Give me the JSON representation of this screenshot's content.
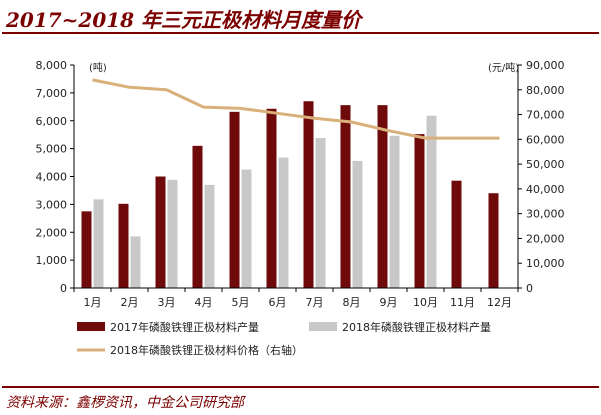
{
  "title": "2017~2018 年三元正极材料月度量价",
  "source": "资料来源：鑫椤资讯，中金公司研究部",
  "colors": {
    "series2017": "#6e0a0a",
    "series2018": "#c8c8c8",
    "price": "#d9b07a",
    "accent": "#7b0000"
  },
  "chart_data": {
    "type": "bar",
    "categories": [
      "1月",
      "2月",
      "3月",
      "4月",
      "5月",
      "6月",
      "7月",
      "8月",
      "9月",
      "10月",
      "11月",
      "12月"
    ],
    "series": [
      {
        "name": "2017年磷酸铁锂正极材料产量",
        "type": "bar",
        "axis": "left",
        "values": [
          2750,
          3020,
          4000,
          5100,
          6320,
          6430,
          6700,
          6560,
          6560,
          5520,
          3850,
          3400
        ]
      },
      {
        "name": "2018年磷酸铁锂正极材料产量",
        "type": "bar",
        "axis": "left",
        "values": [
          3180,
          1850,
          3880,
          3700,
          4250,
          4680,
          5380,
          4560,
          5460,
          6180,
          null,
          null
        ]
      },
      {
        "name": "2018年磷酸铁锂正极材料价格（右轴）",
        "type": "line",
        "axis": "right",
        "values": [
          84000,
          81000,
          80000,
          73000,
          72500,
          70500,
          68500,
          67000,
          63500,
          60500,
          60500,
          60500
        ]
      }
    ],
    "left_axis": {
      "unit": "(吨)",
      "min": 0,
      "max": 8000,
      "step": 1000,
      "ticks": [
        "0",
        "1,000",
        "2,000",
        "3,000",
        "4,000",
        "5,000",
        "6,000",
        "7,000",
        "8,000"
      ]
    },
    "right_axis": {
      "unit": "(元/吨)",
      "min": 0,
      "max": 90000,
      "step": 10000,
      "ticks": [
        "0",
        "10,000",
        "20,000",
        "30,000",
        "40,000",
        "50,000",
        "60,000",
        "70,000",
        "80,000",
        "90,000"
      ]
    },
    "legend_position": "bottom"
  }
}
